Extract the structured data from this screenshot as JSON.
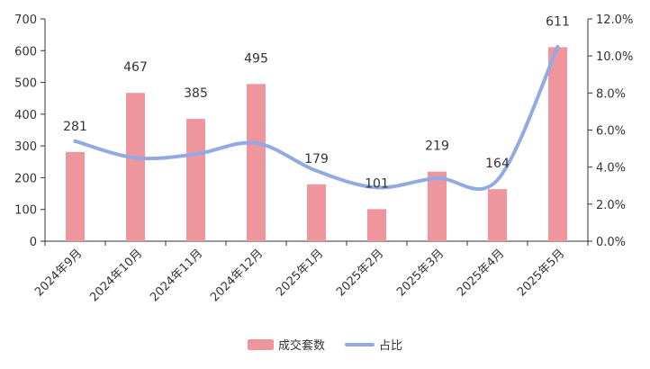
{
  "chart_data": {
    "type": "bar",
    "categories": [
      "2024年9月",
      "2024年10月",
      "2024年11月",
      "2024年12月",
      "2025年1月",
      "2025年2月",
      "2025年3月",
      "2025年4月",
      "2025年5月"
    ],
    "series": [
      {
        "name": "成交套数",
        "type": "bar",
        "axis": "left",
        "color": "#ee959e",
        "values": [
          281,
          467,
          385,
          495,
          179,
          101,
          219,
          164,
          611
        ]
      },
      {
        "name": "占比",
        "type": "line",
        "smooth": true,
        "axis": "right",
        "color": "#91abe2",
        "values": [
          5.4,
          4.5,
          4.7,
          5.3,
          3.8,
          2.9,
          3.4,
          3.3,
          10.5
        ]
      }
    ],
    "y_left": {
      "ylim": [
        0,
        700
      ],
      "ticks": [
        "0",
        "100",
        "200",
        "300",
        "400",
        "500",
        "600",
        "700"
      ]
    },
    "y_right": {
      "ylim": [
        0,
        12
      ],
      "ticks": [
        "0.0%",
        "2.0%",
        "4.0%",
        "6.0%",
        "8.0%",
        "10.0%",
        "12.0%"
      ]
    },
    "data_labels": [
      "281",
      "467",
      "385",
      "495",
      "179",
      "101",
      "219",
      "164",
      "611"
    ],
    "grid": false,
    "legend": "bottom-center"
  }
}
